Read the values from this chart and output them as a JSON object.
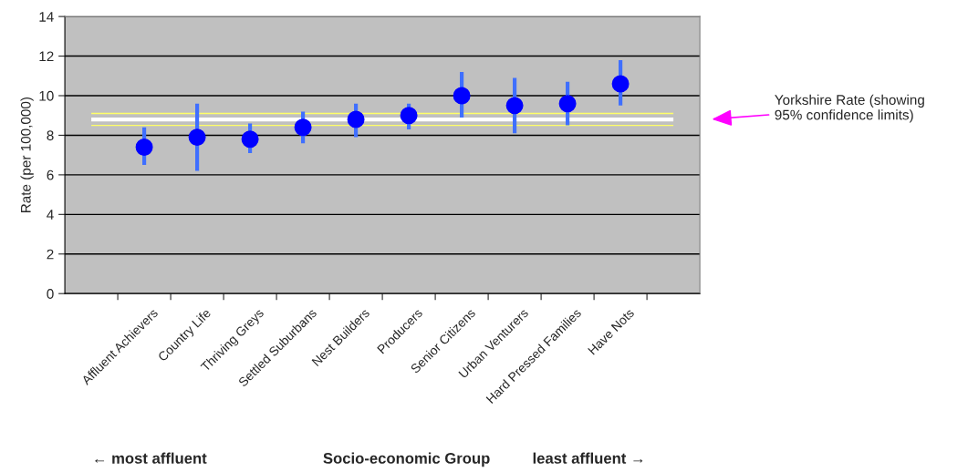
{
  "chart_data": {
    "type": "scatter",
    "xlabel": "Socio-economic Group",
    "ylabel": "Rate (per 100,000)",
    "categories": [
      null,
      "Affluent Achievers",
      "Country Life",
      "Thriving Greys",
      "Settled Suburbans",
      "Nest Builders",
      "Producers",
      "Senior Citizens",
      "Urban Venturers",
      "Hard Pressed Families",
      "Have Nots",
      null
    ],
    "values": [
      null,
      7.4,
      7.9,
      7.8,
      8.4,
      8.8,
      9.0,
      10.0,
      9.5,
      9.6,
      10.6,
      null
    ],
    "errors": [
      null,
      [
        6.5,
        8.4
      ],
      [
        6.2,
        9.6
      ],
      [
        7.1,
        8.6
      ],
      [
        7.6,
        9.2
      ],
      [
        7.9,
        9.6
      ],
      [
        8.3,
        9.6
      ],
      [
        8.9,
        11.2
      ],
      [
        8.1,
        10.9
      ],
      [
        8.5,
        10.7
      ],
      [
        9.5,
        11.8
      ],
      null
    ],
    "color": "#0000ff",
    "marker": "circle",
    "grid": "y",
    "ylim": [
      0,
      14
    ],
    "yticks": [
      0,
      2,
      4,
      6,
      8,
      10,
      12,
      14
    ],
    "ref_lines": [
      {
        "axis": "y",
        "value": 9.1,
        "color": "#ffff66",
        "line_style": "solid"
      },
      {
        "axis": "y",
        "value": 8.8,
        "color": "#ffffff",
        "line_style": "solid"
      },
      {
        "axis": "y",
        "value": 8.5,
        "color": "#ffff66",
        "line_style": "solid"
      }
    ],
    "annotations": [
      "Yorkshire Rate (showing\n95% confidence limits)",
      "← most affluent",
      "least affluent →"
    ]
  }
}
